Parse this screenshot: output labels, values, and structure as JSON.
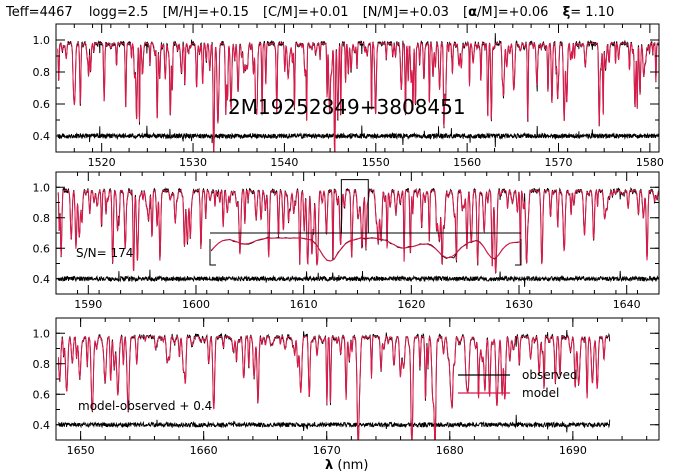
{
  "header": {
    "teff": "Teff=4467",
    "logg": "logg=2.5",
    "mh": "[M/H]=+0.15",
    "cm": "[C/M]=+0.01",
    "nm": "[N/M]=+0.03",
    "am_pre": "[",
    "am_alpha": "α",
    "am_post": "/M]=+0.06",
    "xi_sym": "ξ",
    "xi_val": "= 1.10"
  },
  "star_id": "2M19252849+3808451",
  "snr_label": "S/N= 174",
  "residual_label": "model-observed + 0.4",
  "xaxis_label": {
    "sym": "λ",
    "unit": " (nm)"
  },
  "legend": {
    "observed": "observed",
    "model": "model"
  },
  "colors": {
    "observed": "#000000",
    "model": "#e0184a"
  },
  "chart_data": [
    {
      "type": "line",
      "panel": "top",
      "xlim": [
        1515,
        1581
      ],
      "ylim": [
        0.3,
        1.1
      ],
      "xticks": [
        "1520",
        "1530",
        "1540",
        "1550",
        "1560",
        "1570",
        "1580"
      ],
      "yticks": [
        "0.4",
        "0.6",
        "0.8",
        "1.0"
      ],
      "series": [
        {
          "name": "observed",
          "kind": "spectrum",
          "continuum": 0.98
        },
        {
          "name": "model",
          "kind": "spectrum",
          "continuum": 0.98
        },
        {
          "name": "model-observed + 0.4",
          "kind": "residual",
          "level": 0.4
        }
      ]
    },
    {
      "type": "line",
      "panel": "middle",
      "xlim": [
        1587,
        1643
      ],
      "ylim": [
        0.3,
        1.1
      ],
      "xticks": [
        "1590",
        "1600",
        "1610",
        "1620",
        "1630",
        "1640"
      ],
      "yticks": [
        "0.4",
        "0.6",
        "0.8",
        "1.0"
      ],
      "zoom_box": {
        "x": [
          1613.5,
          1616.0
        ],
        "y": [
          0.7,
          1.05
        ]
      },
      "series": [
        {
          "name": "observed",
          "kind": "spectrum",
          "continuum": 0.98
        },
        {
          "name": "model",
          "kind": "spectrum",
          "continuum": 0.98
        },
        {
          "name": "model-observed + 0.4",
          "kind": "residual",
          "level": 0.4
        }
      ]
    },
    {
      "type": "line",
      "panel": "bottom",
      "xlim": [
        1648,
        1697
      ],
      "ylim": [
        0.3,
        1.1
      ],
      "xticks": [
        "1650",
        "1660",
        "1670",
        "1680",
        "1690"
      ],
      "yticks": [
        "0.4",
        "0.6",
        "0.8",
        "1.0"
      ],
      "data_end": 1693,
      "series": [
        {
          "name": "observed",
          "kind": "spectrum",
          "continuum": 0.98
        },
        {
          "name": "model",
          "kind": "spectrum",
          "continuum": 0.98
        },
        {
          "name": "model-observed + 0.4",
          "kind": "residual",
          "level": 0.4
        }
      ]
    }
  ]
}
